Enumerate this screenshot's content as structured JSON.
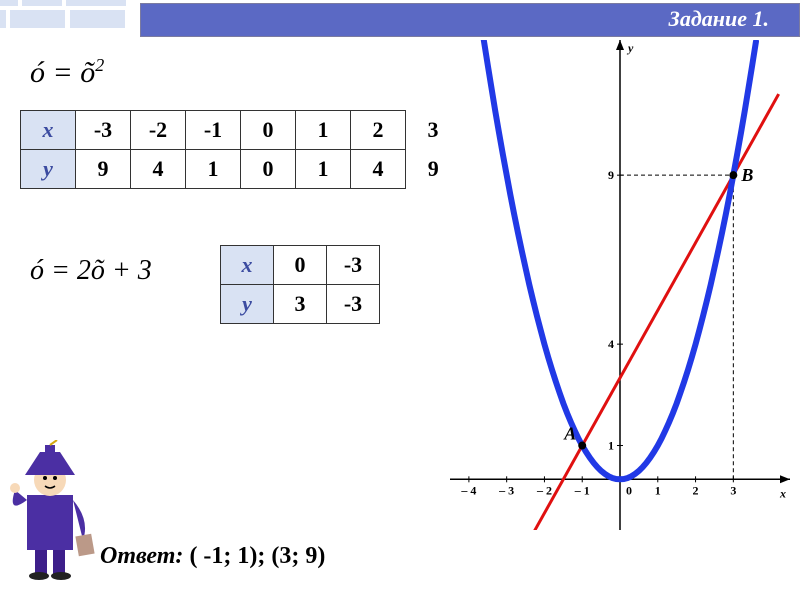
{
  "header": {
    "title": "Задание 1."
  },
  "formula1": "ó = õ²",
  "formula2": "ó = 2õ + 3",
  "table1": {
    "row_labels": [
      "x",
      "y"
    ],
    "x": [
      "-3",
      "-2",
      "-1",
      "0",
      "1",
      "2",
      "3"
    ],
    "y": [
      "9",
      "4",
      "1",
      "0",
      "1",
      "4",
      "9"
    ]
  },
  "table2": {
    "row_labels": [
      "x",
      "y"
    ],
    "x": [
      "0",
      "-3"
    ],
    "y": [
      "3",
      "-3"
    ]
  },
  "answer": {
    "label": "Ответ:",
    "text": "( -1; 1);  (3; 9)"
  },
  "graph": {
    "type": "chart",
    "background_color": "#ffffff",
    "axis_color": "#000000",
    "parabola": {
      "color": "#2139e6",
      "stroke_width": 6,
      "points_x": [
        -3.6,
        -3,
        -2,
        -1,
        0,
        1,
        2,
        3,
        3.6
      ],
      "points_y": [
        12.96,
        9,
        4,
        1,
        0,
        1,
        4,
        9,
        12.96
      ]
    },
    "line": {
      "color": "#e01010",
      "stroke_width": 3,
      "x1": -3.5,
      "y1": -4,
      "x2": 4.2,
      "y2": 11.4
    },
    "points": {
      "A": {
        "x": -1,
        "y": 1,
        "label": "А"
      },
      "B": {
        "x": 3,
        "y": 9,
        "label": "В"
      }
    },
    "xlim": [
      -4.5,
      4.5
    ],
    "ylim": [
      -1.5,
      13
    ],
    "x_ticks": [
      -4,
      -3,
      -2,
      -1,
      0,
      1,
      2,
      3
    ],
    "y_special_ticks": [
      1,
      4,
      9
    ],
    "axis_labels": {
      "x": "x",
      "y": "y"
    },
    "tick_fontsize": 12,
    "point_label_fontsize": 18
  },
  "colors": {
    "header_bg": "#5b69c4",
    "deco_bg": "#d9e2f3",
    "table_header_bg": "#d9e2f3"
  }
}
